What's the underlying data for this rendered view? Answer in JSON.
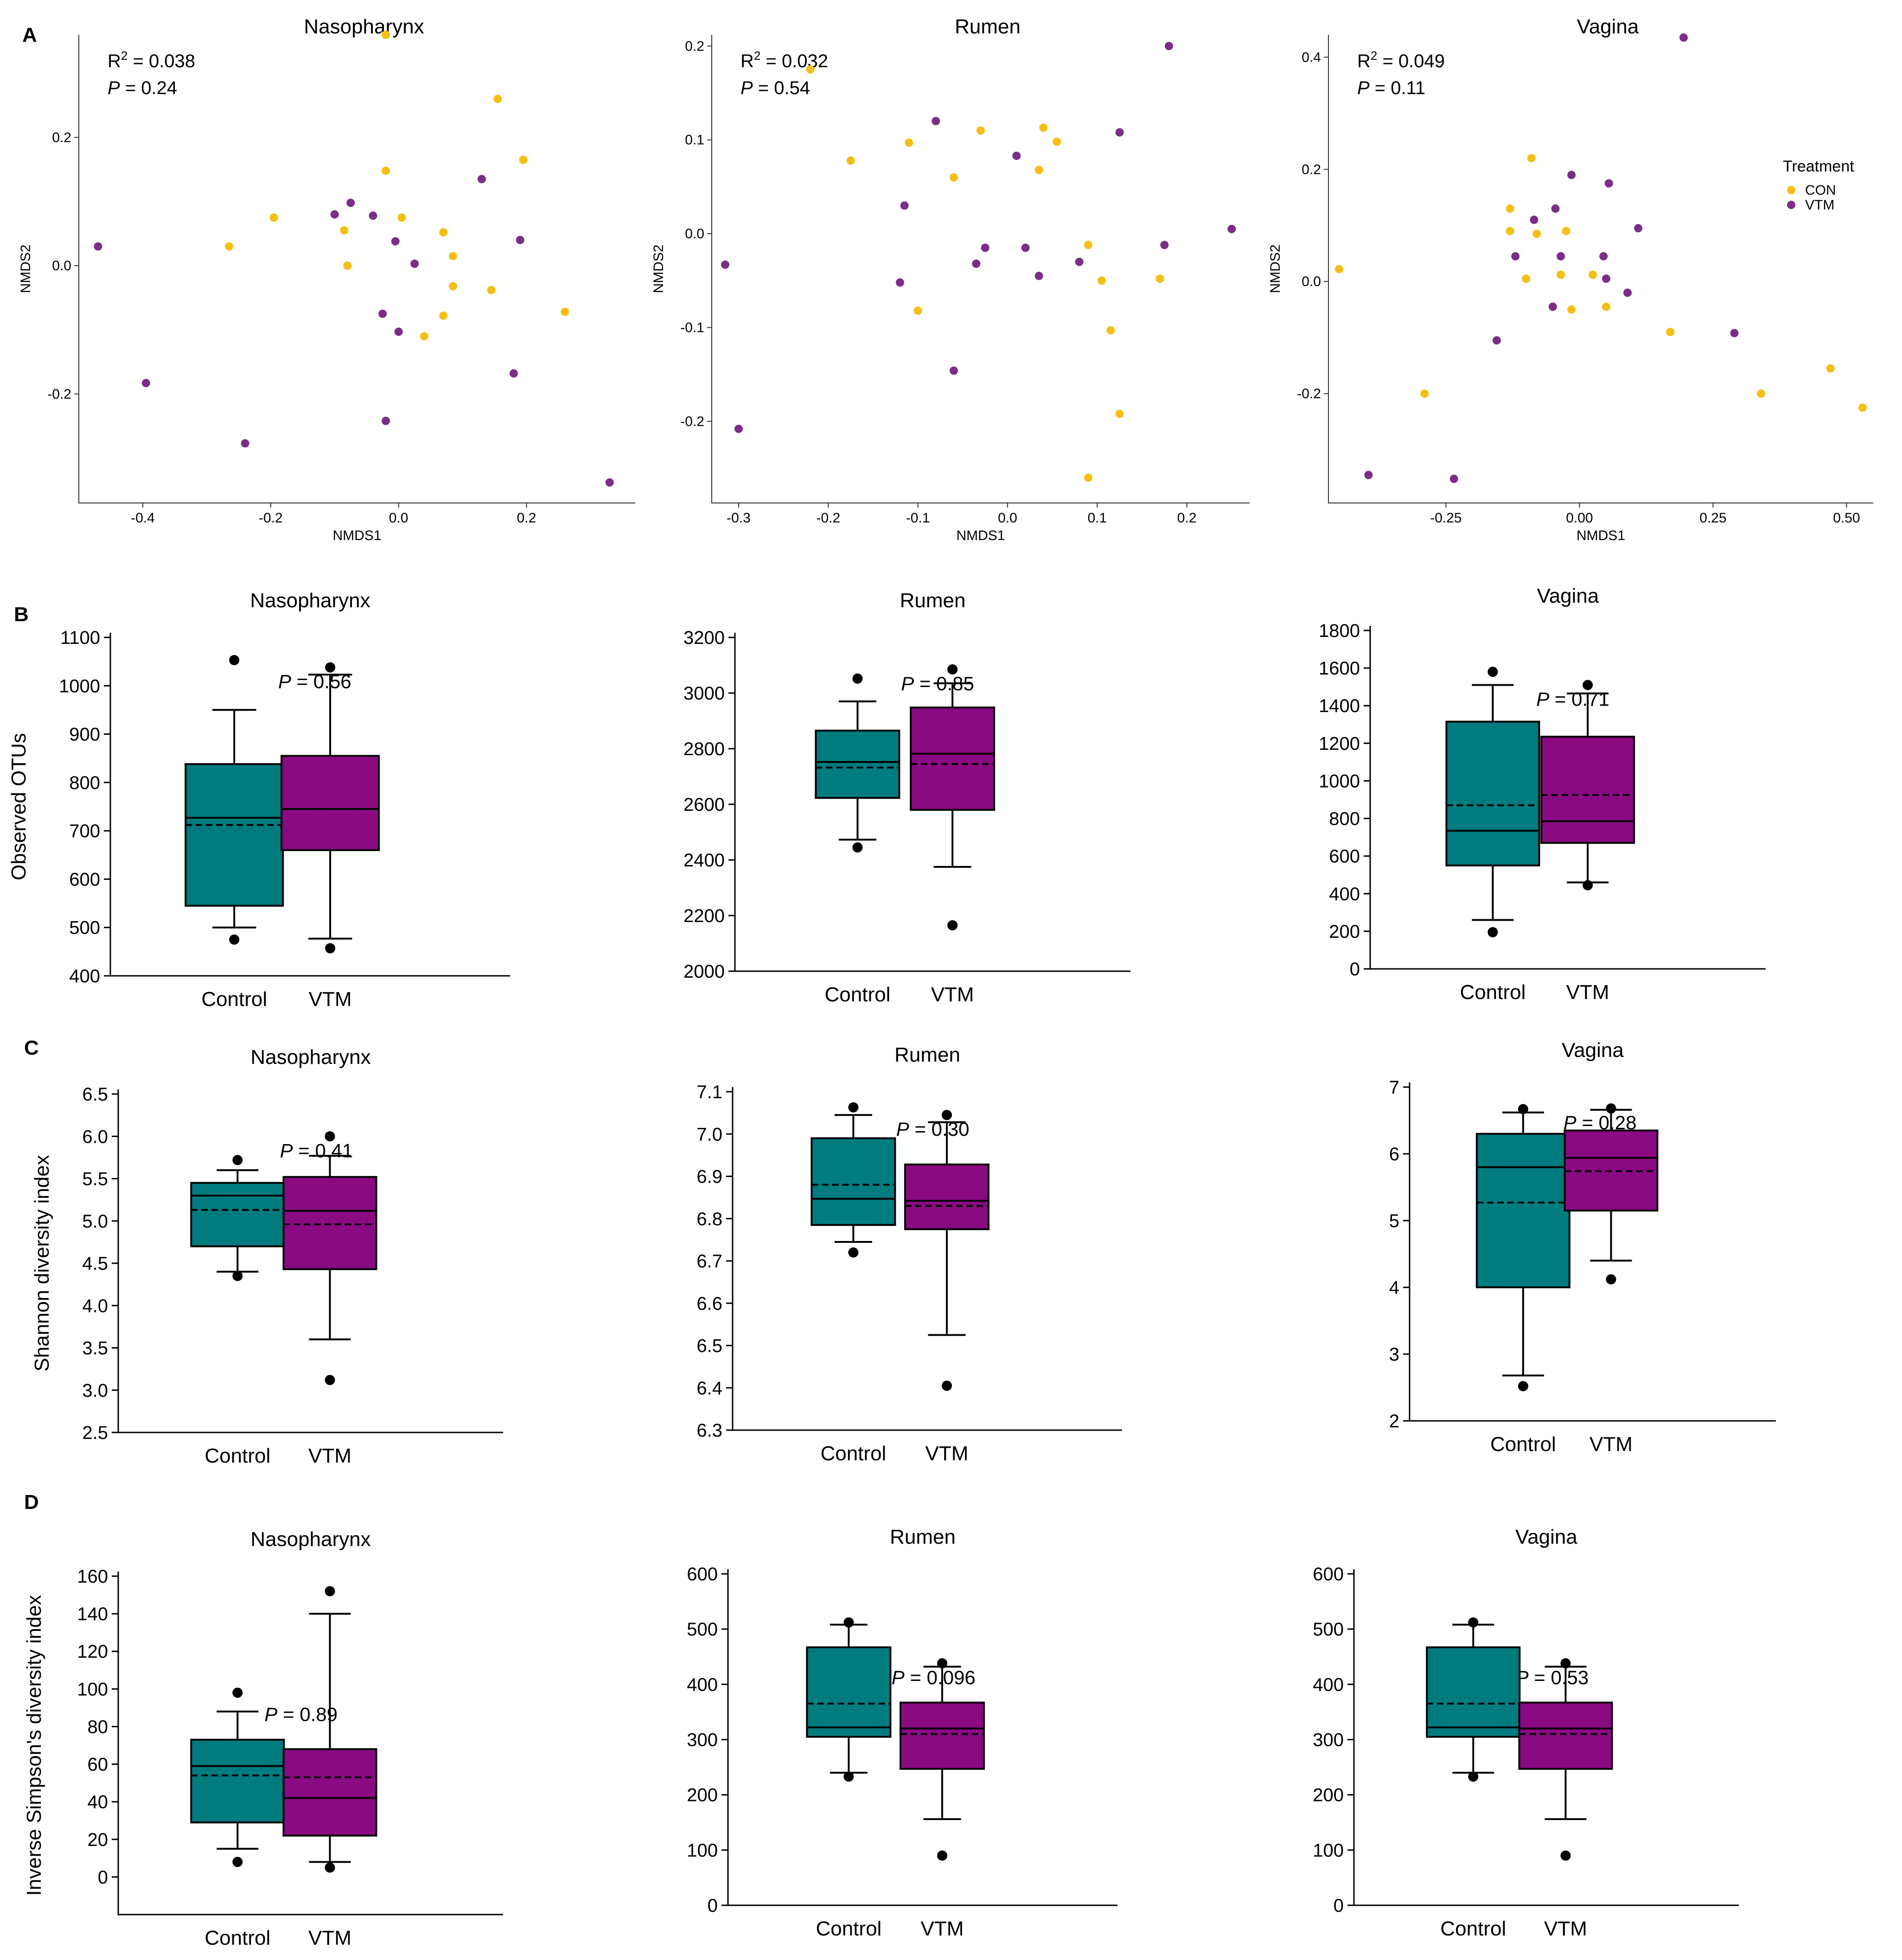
{
  "colors": {
    "con": "#F5BF16",
    "vtm": "#7A2E86",
    "control_box": "#007B7E",
    "vtm_box": "#8A0A82",
    "axis": "#000000"
  },
  "panel_letters": [
    "A",
    "B",
    "C",
    "D"
  ],
  "chart_data": [
    {
      "type": "scatter",
      "panel": "A",
      "title": "Nasopharynx",
      "xlabel": "NMDS1",
      "ylabel": "NMDS2",
      "stats": {
        "r2_label": "R",
        "r2_sup": "2",
        "r2_value": " = 0.038",
        "p_label": "P",
        "p_value": " = 0.24"
      },
      "xlim": [
        -0.5,
        0.37
      ],
      "ylim": [
        -0.37,
        0.36
      ],
      "xticks": [
        -0.4,
        -0.2,
        0.0,
        0.2
      ],
      "xtick_labels": [
        "-0.4",
        "-0.2",
        "0.0",
        "0.2"
      ],
      "yticks": [
        -0.2,
        0.0,
        0.2
      ],
      "ytick_labels": [
        "-0.2",
        "0.0",
        "0.2"
      ],
      "series": [
        {
          "name": "CON",
          "points": [
            [
              -0.02,
              0.36
            ],
            [
              0.155,
              0.26
            ],
            [
              0.195,
              0.165
            ],
            [
              -0.02,
              0.148
            ],
            [
              -0.195,
              0.075
            ],
            [
              0.005,
              0.075
            ],
            [
              -0.085,
              0.055
            ],
            [
              0.07,
              0.052
            ],
            [
              -0.265,
              0.03
            ],
            [
              0.085,
              0.015
            ],
            [
              -0.08,
              0.0
            ],
            [
              0.085,
              -0.032
            ],
            [
              0.145,
              -0.038
            ],
            [
              0.07,
              -0.078
            ],
            [
              0.26,
              -0.072
            ],
            [
              0.04,
              -0.11
            ]
          ]
        },
        {
          "name": "VTM",
          "points": [
            [
              0.13,
              0.135
            ],
            [
              -0.075,
              0.098
            ],
            [
              -0.1,
              0.08
            ],
            [
              -0.04,
              0.078
            ],
            [
              -0.005,
              0.038
            ],
            [
              0.19,
              0.04
            ],
            [
              -0.47,
              0.03
            ],
            [
              0.025,
              0.003
            ],
            [
              -0.025,
              -0.075
            ],
            [
              0.0,
              -0.103
            ],
            [
              0.18,
              -0.168
            ],
            [
              -0.395,
              -0.183
            ],
            [
              -0.02,
              -0.242
            ],
            [
              -0.24,
              -0.277
            ],
            [
              0.33,
              -0.338
            ]
          ]
        }
      ]
    },
    {
      "type": "scatter",
      "panel": "A",
      "title": "Rumen",
      "xlabel": "NMDS1",
      "ylabel": "NMDS2",
      "stats": {
        "r2_label": "R",
        "r2_sup": "2",
        "r2_value": " = 0.032",
        "p_label": "P",
        "p_value": " = 0.54"
      },
      "xlim": [
        -0.33,
        0.27
      ],
      "ylim": [
        -0.287,
        0.212
      ],
      "xticks": [
        -0.3,
        -0.2,
        -0.1,
        0.0,
        0.1,
        0.2
      ],
      "xtick_labels": [
        "-0.3",
        "-0.2",
        "-0.1",
        "0.0",
        "0.1",
        "0.2"
      ],
      "yticks": [
        -0.2,
        -0.1,
        0.0,
        0.1,
        0.2
      ],
      "ytick_labels": [
        "-0.2",
        "-0.1",
        "0.0",
        "0.1",
        "0.2"
      ],
      "series": [
        {
          "name": "CON",
          "points": [
            [
              -0.22,
              0.175
            ],
            [
              -0.175,
              0.078
            ],
            [
              -0.11,
              0.097
            ],
            [
              -0.06,
              0.06
            ],
            [
              -0.03,
              0.11
            ],
            [
              0.04,
              0.113
            ],
            [
              0.055,
              0.098
            ],
            [
              0.035,
              0.068
            ],
            [
              -0.1,
              -0.082
            ],
            [
              0.09,
              -0.012
            ],
            [
              0.105,
              -0.05
            ],
            [
              0.17,
              -0.048
            ],
            [
              0.115,
              -0.103
            ],
            [
              0.125,
              -0.192
            ],
            [
              0.09,
              -0.26
            ]
          ]
        },
        {
          "name": "VTM",
          "points": [
            [
              0.18,
              0.2
            ],
            [
              -0.08,
              0.12
            ],
            [
              0.125,
              0.108
            ],
            [
              0.01,
              0.083
            ],
            [
              -0.115,
              0.03
            ],
            [
              0.25,
              0.005
            ],
            [
              -0.315,
              -0.033
            ],
            [
              -0.025,
              -0.015
            ],
            [
              -0.035,
              -0.032
            ],
            [
              0.02,
              -0.015
            ],
            [
              0.08,
              -0.03
            ],
            [
              0.175,
              -0.012
            ],
            [
              0.035,
              -0.045
            ],
            [
              -0.12,
              -0.052
            ],
            [
              -0.06,
              -0.146
            ],
            [
              -0.3,
              -0.208
            ]
          ]
        }
      ]
    },
    {
      "type": "scatter",
      "panel": "A",
      "title": "Vagina",
      "xlabel": "NMDS1",
      "ylabel": "NMDS2",
      "stats": {
        "r2_label": "R",
        "r2_sup": "2",
        "r2_value": " = 0.049",
        "p_label": "P",
        "p_value": " = 0.11"
      },
      "xlim": [
        -0.47,
        0.55
      ],
      "ylim": [
        -0.395,
        0.44
      ],
      "xticks": [
        -0.25,
        0.0,
        0.25,
        0.5
      ],
      "xtick_labels": [
        "-0.25",
        "0.00",
        "0.25",
        "0.50"
      ],
      "yticks": [
        -0.2,
        0.0,
        0.2,
        0.4
      ],
      "ytick_labels": [
        "-0.2",
        "0.0",
        "0.2",
        "0.4"
      ],
      "legend": {
        "title": "Treatment",
        "position": "right"
      },
      "series": [
        {
          "name": "CON",
          "points": [
            [
              -0.09,
              0.22
            ],
            [
              -0.13,
              0.13
            ],
            [
              -0.13,
              0.09
            ],
            [
              -0.08,
              0.085
            ],
            [
              -0.025,
              0.09
            ],
            [
              -0.1,
              0.005
            ],
            [
              -0.035,
              0.012
            ],
            [
              0.025,
              0.012
            ],
            [
              -0.45,
              0.022
            ],
            [
              -0.015,
              -0.05
            ],
            [
              0.05,
              -0.045
            ],
            [
              0.17,
              -0.09
            ],
            [
              -0.29,
              -0.2
            ],
            [
              0.34,
              -0.2
            ],
            [
              0.47,
              -0.155
            ],
            [
              0.53,
              -0.225
            ]
          ]
        },
        {
          "name": "VTM",
          "points": [
            [
              0.195,
              0.435
            ],
            [
              -0.015,
              0.19
            ],
            [
              0.055,
              0.175
            ],
            [
              -0.045,
              0.13
            ],
            [
              -0.085,
              0.11
            ],
            [
              0.11,
              0.095
            ],
            [
              -0.12,
              0.045
            ],
            [
              -0.035,
              0.045
            ],
            [
              0.045,
              0.045
            ],
            [
              0.05,
              0.005
            ],
            [
              0.09,
              -0.02
            ],
            [
              -0.05,
              -0.045
            ],
            [
              -0.155,
              -0.105
            ],
            [
              0.29,
              -0.092
            ],
            [
              -0.395,
              -0.345
            ],
            [
              -0.235,
              -0.352
            ]
          ]
        }
      ]
    },
    {
      "type": "box",
      "panel": "B",
      "title": "Nasopharynx",
      "ylabel": "Observed OTUs",
      "p_label": "P",
      "p_value": " = 0.56",
      "categories": [
        "Control",
        "VTM"
      ],
      "ylim": [
        400,
        1100
      ],
      "yticks": [
        400,
        500,
        600,
        700,
        800,
        900,
        1000,
        1100
      ],
      "ytick_labels": [
        "400",
        "500",
        "600",
        "700",
        "800",
        "900",
        "1000",
        "1100"
      ],
      "boxes": [
        {
          "name": "Control",
          "whisker_low": 500,
          "q1": 545,
          "median": 727,
          "mean": 712,
          "q3": 838,
          "whisker_high": 950,
          "outliers": [
            475,
            1053
          ]
        },
        {
          "name": "VTM",
          "whisker_low": 477,
          "q1": 660,
          "median": 745,
          "mean": 745,
          "q3": 855,
          "whisker_high": 1023,
          "outliers": [
            457,
            1038
          ]
        }
      ]
    },
    {
      "type": "box",
      "panel": "B",
      "title": "Rumen",
      "ylabel": "",
      "p_label": "P",
      "p_value": " = 0.85",
      "categories": [
        "Control",
        "VTM"
      ],
      "ylim": [
        2000,
        3200
      ],
      "yticks": [
        2000,
        2200,
        2400,
        2600,
        2800,
        3000,
        3200
      ],
      "ytick_labels": [
        "2000",
        "2200",
        "2400",
        "2600",
        "2800",
        "3000",
        "3200"
      ],
      "boxes": [
        {
          "name": "Control",
          "whisker_low": 2473,
          "q1": 2623,
          "median": 2752,
          "mean": 2732,
          "q3": 2865,
          "whisker_high": 2970,
          "outliers": [
            2445,
            3052
          ]
        },
        {
          "name": "VTM",
          "whisker_low": 2375,
          "q1": 2580,
          "median": 2782,
          "mean": 2745,
          "q3": 2948,
          "whisker_high": 3035,
          "outliers": [
            2165,
            3085
          ]
        }
      ]
    },
    {
      "type": "box",
      "panel": "B",
      "title": "Vagina",
      "ylabel": "",
      "p_label": "P",
      "p_value": " = 0.71",
      "categories": [
        "Control",
        "VTM"
      ],
      "ylim": [
        0,
        1800
      ],
      "yticks": [
        0,
        200,
        400,
        600,
        800,
        1000,
        1200,
        1400,
        1600,
        1800
      ],
      "ytick_labels": [
        "0",
        "200",
        "400",
        "600",
        "800",
        "1000",
        "1200",
        "1400",
        "1600",
        "1800"
      ],
      "boxes": [
        {
          "name": "Control",
          "whisker_low": 260,
          "q1": 550,
          "median": 735,
          "mean": 870,
          "q3": 1315,
          "whisker_high": 1510,
          "outliers": [
            195,
            1580
          ]
        },
        {
          "name": "VTM",
          "whisker_low": 460,
          "q1": 670,
          "median": 785,
          "mean": 925,
          "q3": 1235,
          "whisker_high": 1465,
          "outliers": [
            445,
            1510
          ]
        }
      ]
    },
    {
      "type": "box",
      "panel": "C",
      "title": "Nasopharynx",
      "ylabel": "Shannon diversity index",
      "p_label": "P",
      "p_value": " = 0.41",
      "categories": [
        "Control",
        "VTM"
      ],
      "ylim": [
        2.5,
        6.5
      ],
      "yticks": [
        2.5,
        3.0,
        3.5,
        4.0,
        4.5,
        5.0,
        5.5,
        6.0,
        6.5
      ],
      "ytick_labels": [
        "2.5",
        "3.0",
        "3.5",
        "4.0",
        "4.5",
        "5.0",
        "5.5",
        "6.0",
        "6.5"
      ],
      "boxes": [
        {
          "name": "Control",
          "whisker_low": 4.4,
          "q1": 4.7,
          "median": 5.3,
          "mean": 5.13,
          "q3": 5.45,
          "whisker_high": 5.6,
          "outliers": [
            4.35,
            5.72
          ]
        },
        {
          "name": "VTM",
          "whisker_low": 3.6,
          "q1": 4.43,
          "median": 5.12,
          "mean": 4.96,
          "q3": 5.52,
          "whisker_high": 5.77,
          "outliers": [
            3.12,
            6.0
          ]
        }
      ]
    },
    {
      "type": "box",
      "panel": "C",
      "title": "Rumen",
      "ylabel": "",
      "p_label": "P",
      "p_value": " = 0.30",
      "categories": [
        "Control",
        "VTM"
      ],
      "ylim": [
        6.3,
        7.1
      ],
      "yticks": [
        6.3,
        6.4,
        6.5,
        6.6,
        6.7,
        6.8,
        6.9,
        7.0,
        7.1
      ],
      "ytick_labels": [
        "6.3",
        "6.4",
        "6.5",
        "6.6",
        "6.7",
        "6.8",
        "6.9",
        "7.0",
        "7.1"
      ],
      "boxes": [
        {
          "name": "Control",
          "whisker_low": 6.745,
          "q1": 6.785,
          "median": 6.847,
          "mean": 6.88,
          "q3": 6.99,
          "whisker_high": 7.045,
          "outliers": [
            6.72,
            7.063
          ]
        },
        {
          "name": "VTM",
          "whisker_low": 6.525,
          "q1": 6.775,
          "median": 6.842,
          "mean": 6.83,
          "q3": 6.928,
          "whisker_high": 7.028,
          "outliers": [
            6.405,
            7.045
          ]
        }
      ]
    },
    {
      "type": "box",
      "panel": "C",
      "title": "Vagina",
      "ylabel": "",
      "p_label": "P",
      "p_value": " = 0.28",
      "categories": [
        "Control",
        "VTM"
      ],
      "ylim": [
        2,
        7
      ],
      "yticks": [
        2,
        3,
        4,
        5,
        6,
        7
      ],
      "ytick_labels": [
        "2",
        "3",
        "4",
        "5",
        "6",
        "7"
      ],
      "boxes": [
        {
          "name": "Control",
          "whisker_low": 2.68,
          "q1": 4.0,
          "median": 5.8,
          "mean": 5.27,
          "q3": 6.3,
          "whisker_high": 6.62,
          "outliers": [
            2.52,
            6.67
          ]
        },
        {
          "name": "VTM",
          "whisker_low": 4.4,
          "q1": 5.15,
          "median": 5.94,
          "mean": 5.74,
          "q3": 6.35,
          "whisker_high": 6.66,
          "outliers": [
            4.12,
            6.68
          ]
        }
      ]
    },
    {
      "type": "box",
      "panel": "D",
      "title": "Nasopharynx",
      "ylabel": "Inverse Simpson's diversity index",
      "p_label": "P",
      "p_value": " = 0.89",
      "categories": [
        "Control",
        "VTM"
      ],
      "ylim": [
        -20,
        160
      ],
      "yticks": [
        0,
        20,
        40,
        60,
        80,
        100,
        120,
        140,
        160
      ],
      "ytick_labels": [
        "0",
        "20",
        "40",
        "60",
        "80",
        "100",
        "120",
        "140",
        "160"
      ],
      "boxes": [
        {
          "name": "Control",
          "whisker_low": 15,
          "q1": 29,
          "median": 59,
          "mean": 54,
          "q3": 73,
          "whisker_high": 88,
          "outliers": [
            8,
            98
          ]
        },
        {
          "name": "VTM",
          "whisker_low": 8,
          "q1": 22,
          "median": 42,
          "mean": 53,
          "q3": 68,
          "whisker_high": 140,
          "outliers": [
            5,
            152
          ]
        }
      ]
    },
    {
      "type": "box",
      "panel": "D",
      "title": "Rumen",
      "ylabel": "",
      "p_label": "P",
      "p_value": " = 0.096",
      "categories": [
        "Control",
        "VTM"
      ],
      "ylim": [
        0,
        600
      ],
      "yticks": [
        0,
        100,
        200,
        300,
        400,
        500,
        600
      ],
      "ytick_labels": [
        "0",
        "100",
        "200",
        "300",
        "400",
        "500",
        "600"
      ],
      "boxes": [
        {
          "name": "Control",
          "whisker_low": 240,
          "q1": 305,
          "median": 322,
          "mean": 365,
          "q3": 467,
          "whisker_high": 508,
          "outliers": [
            233,
            512
          ]
        },
        {
          "name": "VTM",
          "whisker_low": 156,
          "q1": 247,
          "median": 320,
          "mean": 310,
          "q3": 367,
          "whisker_high": 432,
          "outliers": [
            90,
            438
          ]
        }
      ]
    },
    {
      "type": "box",
      "panel": "D",
      "title": "Vagina",
      "ylabel": "",
      "p_label": "P",
      "p_value": " = 0.53",
      "categories": [
        "Control",
        "VTM"
      ],
      "ylim": [
        0,
        600
      ],
      "yticks": [
        0,
        100,
        200,
        300,
        400,
        500,
        600
      ],
      "ytick_labels": [
        "0",
        "100",
        "200",
        "300",
        "400",
        "500",
        "600"
      ],
      "boxes": [
        {
          "name": "Control",
          "whisker_low": 240,
          "q1": 305,
          "median": 322,
          "mean": 365,
          "q3": 467,
          "whisker_high": 508,
          "outliers": [
            233,
            512
          ]
        },
        {
          "name": "VTM",
          "whisker_low": 156,
          "q1": 247,
          "median": 320,
          "mean": 310,
          "q3": 367,
          "whisker_high": 432,
          "outliers": [
            90,
            438
          ]
        }
      ]
    }
  ]
}
